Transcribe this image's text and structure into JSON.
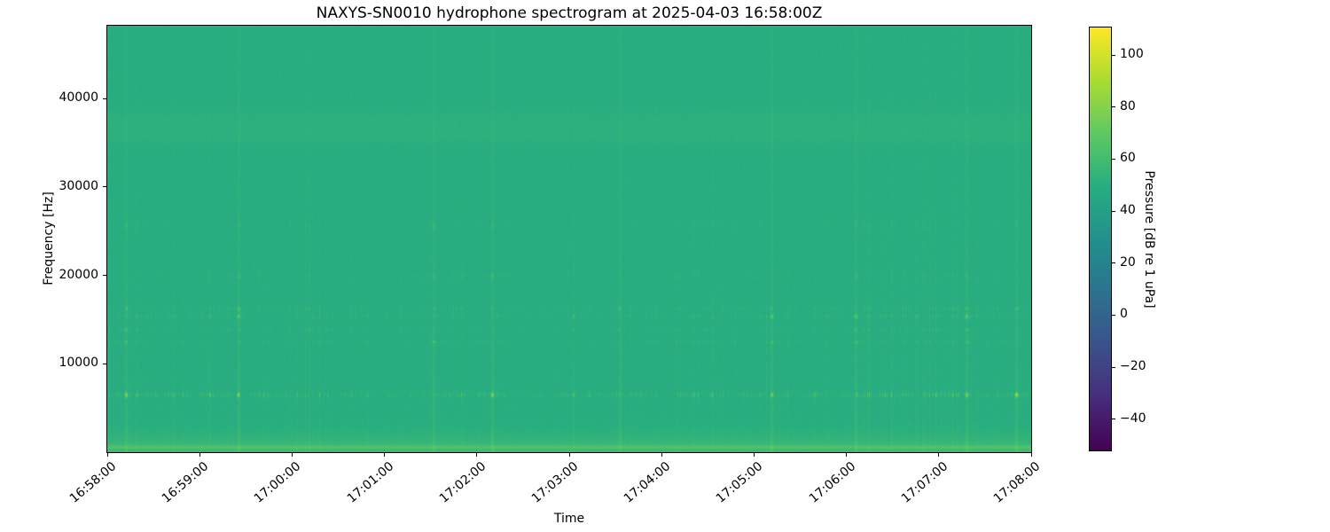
{
  "title": "NAXYS-SN0010 hydrophone spectrogram at 2025-04-03 16:58:00Z",
  "axes": {
    "xlabel": "Time",
    "ylabel": "Frequency [Hz]"
  },
  "x_tick_labels": [
    "16:58:00",
    "16:59:00",
    "17:00:00",
    "17:01:00",
    "17:02:00",
    "17:03:00",
    "17:04:00",
    "17:05:00",
    "17:06:00",
    "17:07:00",
    "17:08:00"
  ],
  "y_tick_labels": [
    "10000",
    "20000",
    "30000",
    "40000"
  ],
  "colorbar": {
    "label": "Pressure [dB re 1 uPa]",
    "tick_labels": [
      "100",
      "80",
      "60",
      "40",
      "20",
      "0",
      "−20",
      "−40"
    ]
  },
  "chart_data": {
    "type": "heatmap",
    "subtype": "spectrogram",
    "title": "NAXYS-SN0010 hydrophone spectrogram at 2025-04-03 16:58:00Z",
    "xlabel": "Time",
    "ylabel": "Frequency [Hz]",
    "x_start": "16:58:00",
    "x_end": "17:08:00",
    "x_span_s": 600,
    "x_tick_interval_s": 60,
    "x_ticks": [
      "16:58:00",
      "16:59:00",
      "17:00:00",
      "17:01:00",
      "17:02:00",
      "17:03:00",
      "17:04:00",
      "17:05:00",
      "17:06:00",
      "17:07:00",
      "17:08:00"
    ],
    "y_ticks_hz": [
      10000,
      20000,
      30000,
      40000
    ],
    "y_range_hz": [
      0,
      48250
    ],
    "grid": false,
    "colorbar": {
      "label": "Pressure [dB re 1 uPa]",
      "ticks_db": [
        100,
        80,
        60,
        40,
        20,
        0,
        -20,
        -40
      ],
      "clim_db": [
        -52,
        110.6
      ],
      "colormap": "viridis",
      "colormap_stops": [
        [
          0.0,
          "#440154"
        ],
        [
          0.125,
          "#472d7b"
        ],
        [
          0.25,
          "#3b528b"
        ],
        [
          0.375,
          "#2c728e"
        ],
        [
          0.5,
          "#21918c"
        ],
        [
          0.625,
          "#27ad81"
        ],
        [
          0.75,
          "#5ec962"
        ],
        [
          0.875,
          "#aadc32"
        ],
        [
          1.0,
          "#fde725"
        ]
      ]
    },
    "content": {
      "description": "Mostly uniform teal background near 50 dB with broadband vertical click transients (click trains) across the whole record; strong intermittent tonal bands near 6.4 kHz (brightest, yellow-green dashes), 12.5 / 13.9 / 15.4 / 16.2 kHz, weak bands near 20 and 25.7 kHz, a faint steady band around 36-38 kHz, and elevated broadband energy below ~3 kHz with a bright narrow line near 0.5 kHz.",
      "baseline_db": 50,
      "noise_db_pp": 2.6,
      "low_freq_boost": {
        "gain_db": 7,
        "rolloff_hz": 1900
      },
      "low_freq_line": {
        "center_hz": 520,
        "sigma_hz": 240,
        "gain_db": 8
      },
      "high_band_static": [
        {
          "center_hz": 37200,
          "sigma_hz": 1500,
          "gain_db": 2.0
        },
        {
          "center_hz": 35600,
          "sigma_hz": 800,
          "gain_db": 1.2
        }
      ],
      "click_broadband": {
        "gain_db": 4.5,
        "floor": 0.35,
        "rolloff_hz": 16000
      },
      "tonal_bands": [
        {
          "center_hz": 6450,
          "sigma_hz": 260,
          "peak_db": 34,
          "duty": 0.75
        },
        {
          "center_hz": 12450,
          "sigma_hz": 150,
          "peak_db": 13,
          "duty": 0.6
        },
        {
          "center_hz": 13850,
          "sigma_hz": 160,
          "peak_db": 12,
          "duty": 0.6
        },
        {
          "center_hz": 15350,
          "sigma_hz": 240,
          "peak_db": 16,
          "duty": 0.65
        },
        {
          "center_hz": 16200,
          "sigma_hz": 200,
          "peak_db": 13,
          "duty": 0.6
        },
        {
          "center_hz": 19900,
          "sigma_hz": 280,
          "peak_db": 7,
          "duty": 0.5
        },
        {
          "center_hz": 25700,
          "sigma_hz": 420,
          "peak_db": 5,
          "duty": 0.5
        }
      ],
      "strong_event_s": [
        12,
        85,
        212,
        250,
        333,
        431,
        486,
        558,
        590
      ]
    }
  }
}
